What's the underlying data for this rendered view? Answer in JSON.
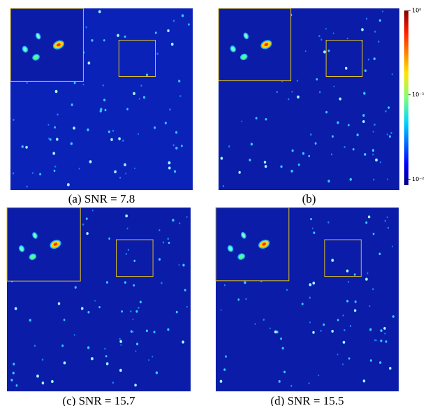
{
  "figure": {
    "panels": [
      {
        "caption": "(a) SNR = 7.8"
      },
      {
        "caption": "(b)"
      },
      {
        "caption": "(c) SNR = 15.7"
      },
      {
        "caption": "(d) SNR = 15.5"
      }
    ],
    "colorbar": {
      "scale": "log",
      "range": [
        0.0085,
        1
      ],
      "ticks": [
        {
          "value": 1,
          "label": "10⁰"
        },
        {
          "value": 0.1,
          "label": "10⁻¹"
        },
        {
          "value": 0.01,
          "label": "10⁻²"
        }
      ]
    }
  }
}
